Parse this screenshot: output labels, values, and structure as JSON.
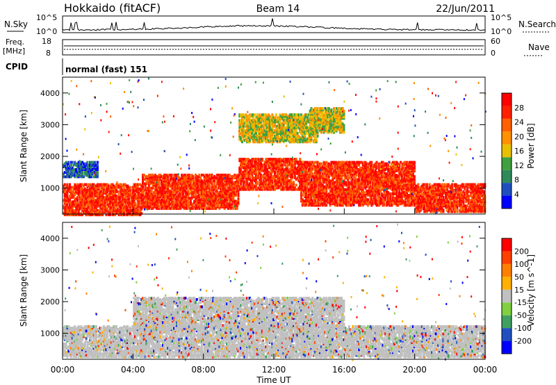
{
  "header": {
    "station": "Hokkaido (fitACF)",
    "beam": "Beam 14",
    "date": "22/Jun/2011"
  },
  "top_panels": {
    "nsky_label": "N.Sky",
    "nsearch_label": "N.Search",
    "nsky_ticks": [
      "10^5",
      "10^0"
    ],
    "nsearch_ticks": [
      "10^5",
      "10^0"
    ],
    "freq_label_line1": "Freq.",
    "freq_label_line2": "[MHz]",
    "freq_ticks": [
      "18",
      "8"
    ],
    "nave_label": "Nave",
    "nave_ticks": [
      "60",
      "0"
    ],
    "cpid_label": "CPID",
    "cpid_text": "normal (fast) 151"
  },
  "chart_data": [
    {
      "type": "heatmap",
      "name": "power-panel",
      "ylabel": "Slant Range [km]",
      "xlabel": "Time UT",
      "x_ticks": [
        "00:00",
        "04:00",
        "08:00",
        "12:00",
        "16:00",
        "20:00",
        "00:00"
      ],
      "y_ticks": [
        1000,
        2000,
        3000,
        4000
      ],
      "xlim_hours": [
        0,
        24
      ],
      "ylim": [
        180,
        4500
      ],
      "colorbar": {
        "label": "Power [dB]",
        "ticks": [
          "28",
          "24",
          "20",
          "16",
          "12",
          "8",
          "4"
        ],
        "colors": [
          "#0000ff",
          "#1f4fbf",
          "#2f8a5a",
          "#3fa040",
          "#e8c000",
          "#ff9000",
          "#ff6000",
          "#ff2000",
          "#ff0000"
        ]
      },
      "regions": [
        {
          "t0": 0.0,
          "t1": 4.5,
          "r0": 200,
          "r1": 1200,
          "level": "high"
        },
        {
          "t0": 4.5,
          "t1": 10.0,
          "r0": 400,
          "r1": 1500,
          "level": "high"
        },
        {
          "t0": 10.0,
          "t1": 13.5,
          "r0": 1000,
          "r1": 2000,
          "level": "high"
        },
        {
          "t0": 13.5,
          "t1": 20.0,
          "r0": 500,
          "r1": 1900,
          "level": "high"
        },
        {
          "t0": 20.0,
          "t1": 24.0,
          "r0": 300,
          "r1": 1200,
          "level": "high"
        },
        {
          "t0": 0.0,
          "t1": 2.0,
          "r0": 1400,
          "r1": 1900,
          "level": "low"
        },
        {
          "t0": 10.0,
          "t1": 14.5,
          "r0": 2500,
          "r1": 3400,
          "level": "mid"
        },
        {
          "t0": 14.0,
          "t1": 16.0,
          "r0": 2800,
          "r1": 3600,
          "level": "mid"
        }
      ]
    },
    {
      "type": "heatmap",
      "name": "velocity-panel",
      "ylabel": "Slant Range [km]",
      "xlabel": "Time UT",
      "x_ticks": [
        "00:00",
        "04:00",
        "08:00",
        "12:00",
        "16:00",
        "20:00",
        "00:00"
      ],
      "y_ticks": [
        1000,
        2000,
        3000,
        4000
      ],
      "xlim_hours": [
        0,
        24
      ],
      "ylim": [
        180,
        4500
      ],
      "colorbar": {
        "label": "Velocity [m s^-1]",
        "ticks": [
          "200",
          "100",
          "50",
          "15",
          "-15",
          "-50",
          "-100",
          "-200"
        ],
        "colors": [
          "#0000ff",
          "#2050c0",
          "#40a060",
          "#80d040",
          "#c0c0c0",
          "#ffb000",
          "#ff8000",
          "#ff4000",
          "#ff0000"
        ]
      },
      "regions": [
        {
          "t0": 0.0,
          "t1": 24.0,
          "r0": 300,
          "r1": 1300,
          "level": "ground"
        },
        {
          "t0": 4.0,
          "t1": 16.0,
          "r0": 1200,
          "r1": 2200,
          "level": "ground"
        }
      ]
    }
  ]
}
